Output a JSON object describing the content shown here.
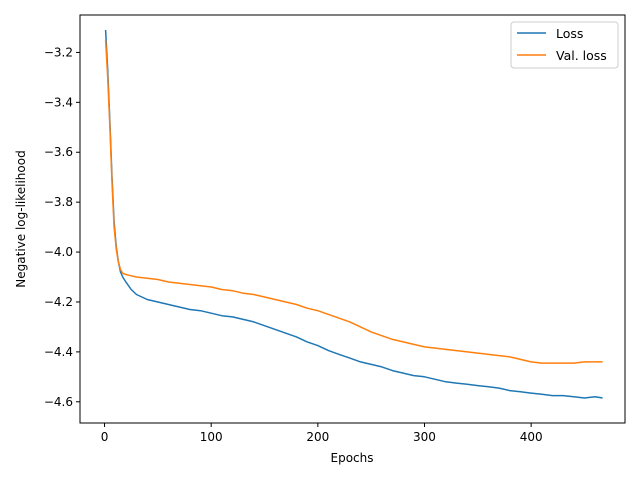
{
  "chart_data": {
    "type": "line",
    "title": "",
    "xlabel": "Epochs",
    "ylabel": "Negative log-likelihood",
    "xlim": [
      -23,
      488
    ],
    "ylim": [
      -4.685,
      -3.05
    ],
    "xticks": [
      0,
      100,
      200,
      300,
      400
    ],
    "yticks": [
      -3.2,
      -3.4,
      -3.6,
      -3.8,
      -4.0,
      -4.2,
      -4.4,
      -4.6
    ],
    "grid": false,
    "legend_position": "top-right",
    "series": [
      {
        "name": "Loss",
        "color": "#1f77b4",
        "x": [
          1,
          3,
          5,
          7,
          9,
          11,
          13,
          15,
          17,
          20,
          25,
          30,
          40,
          50,
          60,
          70,
          80,
          90,
          100,
          110,
          120,
          130,
          140,
          150,
          160,
          170,
          180,
          190,
          200,
          210,
          220,
          230,
          240,
          250,
          260,
          270,
          280,
          290,
          300,
          310,
          320,
          330,
          340,
          350,
          360,
          370,
          380,
          390,
          400,
          410,
          420,
          430,
          440,
          450,
          460,
          467
        ],
        "y": [
          -3.11,
          -3.27,
          -3.48,
          -3.7,
          -3.88,
          -3.98,
          -4.04,
          -4.08,
          -4.1,
          -4.12,
          -4.15,
          -4.17,
          -4.19,
          -4.2,
          -4.21,
          -4.22,
          -4.23,
          -4.235,
          -4.245,
          -4.255,
          -4.26,
          -4.27,
          -4.28,
          -4.295,
          -4.31,
          -4.325,
          -4.34,
          -4.36,
          -4.375,
          -4.395,
          -4.41,
          -4.425,
          -4.44,
          -4.45,
          -4.46,
          -4.475,
          -4.485,
          -4.495,
          -4.5,
          -4.51,
          -4.52,
          -4.525,
          -4.53,
          -4.535,
          -4.54,
          -4.545,
          -4.555,
          -4.56,
          -4.565,
          -4.57,
          -4.575,
          -4.575,
          -4.58,
          -4.585,
          -4.58,
          -4.585
        ]
      },
      {
        "name": "Val. loss",
        "color": "#ff7f0e",
        "x": [
          1,
          3,
          5,
          7,
          9,
          11,
          13,
          15,
          17,
          20,
          25,
          30,
          40,
          50,
          60,
          70,
          80,
          90,
          100,
          110,
          120,
          130,
          140,
          150,
          160,
          170,
          180,
          190,
          200,
          210,
          220,
          230,
          240,
          250,
          260,
          270,
          280,
          290,
          300,
          310,
          320,
          330,
          340,
          350,
          360,
          370,
          380,
          390,
          400,
          410,
          420,
          430,
          440,
          450,
          460,
          467
        ],
        "y": [
          -3.15,
          -3.3,
          -3.5,
          -3.72,
          -3.9,
          -3.99,
          -4.04,
          -4.07,
          -4.085,
          -4.09,
          -4.095,
          -4.1,
          -4.105,
          -4.11,
          -4.12,
          -4.125,
          -4.13,
          -4.135,
          -4.14,
          -4.15,
          -4.155,
          -4.165,
          -4.17,
          -4.18,
          -4.19,
          -4.2,
          -4.21,
          -4.225,
          -4.235,
          -4.25,
          -4.265,
          -4.28,
          -4.3,
          -4.32,
          -4.335,
          -4.35,
          -4.36,
          -4.37,
          -4.38,
          -4.385,
          -4.39,
          -4.395,
          -4.4,
          -4.405,
          -4.41,
          -4.415,
          -4.42,
          -4.43,
          -4.44,
          -4.445,
          -4.445,
          -4.445,
          -4.445,
          -4.44,
          -4.44,
          -4.44
        ]
      }
    ]
  }
}
